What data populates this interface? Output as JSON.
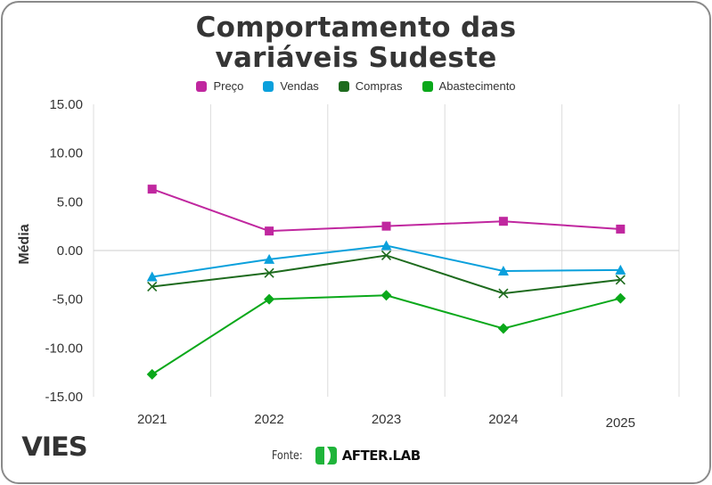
{
  "chart_data": {
    "type": "line",
    "title": "Comportamento das variáveis Sudeste",
    "title_lines": [
      "Comportamento das",
      "variáveis Sudeste"
    ],
    "xlabel": "",
    "ylabel": "Média",
    "categories": [
      "2021",
      "2022",
      "2023",
      "2024",
      "2025"
    ],
    "ylim": [
      -15,
      15
    ],
    "yticks": [
      15,
      10,
      5,
      0,
      -5,
      -10,
      -15
    ],
    "ytick_labels": [
      "15.00",
      "10.00",
      "5.00",
      "0.00",
      "-5,00",
      "-10.00",
      "-15.00"
    ],
    "grid": true,
    "legend_position": "top-center",
    "series": [
      {
        "name": "Preço",
        "color": "#c0279f",
        "marker": "square",
        "values": [
          6.3,
          2.0,
          2.5,
          3.0,
          2.2
        ]
      },
      {
        "name": "Vendas",
        "color": "#0aa0dc",
        "marker": "triangle",
        "values": [
          -2.7,
          -0.9,
          0.5,
          -2.1,
          -2.0
        ]
      },
      {
        "name": "Compras",
        "color": "#1e6b1e",
        "marker": "x",
        "values": [
          -3.7,
          -2.3,
          -0.5,
          -4.4,
          -3.0
        ]
      },
      {
        "name": "Abastecimento",
        "color": "#0aa81a",
        "marker": "diamond",
        "values": [
          -12.7,
          -5.0,
          -4.6,
          -8.0,
          -4.9
        ]
      }
    ]
  },
  "branding": {
    "left_logo": "VIES",
    "source_label": "Fonte:",
    "source_logo_text": "AFTER.LAB",
    "source_logo_color": "#1fb43a"
  }
}
